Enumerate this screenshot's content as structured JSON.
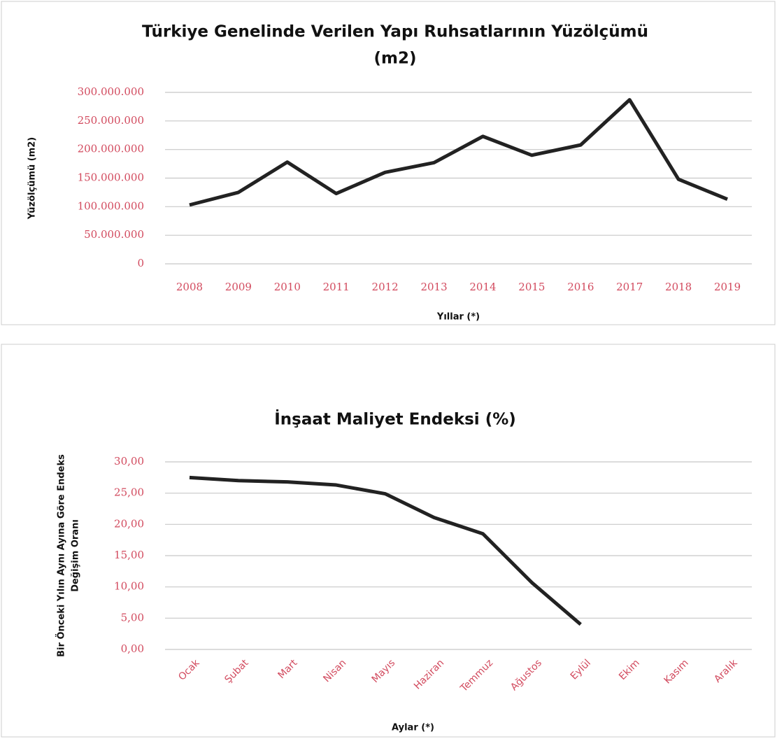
{
  "chart_data": [
    {
      "type": "line",
      "title": [
        "Türkiye Genelinde Verilen Yapı Ruhsatlarının Yüzölçümü",
        "(m2)"
      ],
      "y_label": [
        "Yüzölçümü (m2)"
      ],
      "x_label": "Yıllar (*)",
      "categories": [
        "2008",
        "2009",
        "2010",
        "2011",
        "2012",
        "2013",
        "2014",
        "2015",
        "2016",
        "2017",
        "2018",
        "2019"
      ],
      "series": [
        {
          "color": "#222222",
          "values": [
            103000000,
            125000000,
            178000000,
            123000000,
            160000000,
            177000000,
            223000000,
            190000000,
            208000000,
            287000000,
            148000000,
            113000000
          ]
        }
      ],
      "ylim": [
        0,
        300000000
      ],
      "yticks": [
        0,
        {
          "value": 50000000,
          "label": "50.000.000"
        },
        {
          "value": 100000000,
          "label": "100.000.000"
        },
        {
          "value": 150000000,
          "label": "150.000.000"
        },
        {
          "value": 200000000,
          "label": "200.000.000"
        },
        {
          "value": 250000000,
          "label": "250.000.000"
        },
        {
          "value": 300000000,
          "label": "300.000.000"
        }
      ],
      "grid": true
    },
    {
      "type": "line",
      "title": [
        "İnşaat Maliyet Endeksi (%)"
      ],
      "y_label": [
        "Bir Önceki Yılın Aynı Ayına Göre Endeks",
        "Değişim Oranı"
      ],
      "x_label": "Aylar (*)",
      "categories": [
        "Ocak",
        "Şubat",
        "Mart",
        "Nisan",
        "Mayıs",
        "Haziran",
        "Temmuz",
        "Ağustos",
        "Eylül",
        "Ekim",
        "Kasım",
        "Aralık"
      ],
      "series": [
        {
          "color": "#222222",
          "values": [
            27.5,
            27.0,
            26.8,
            26.3,
            24.9,
            21.1,
            18.5,
            10.7,
            4.0,
            null,
            null,
            null
          ]
        }
      ],
      "ylim": [
        0,
        30
      ],
      "yticks": [
        {
          "value": 0,
          "label": "0,00"
        },
        {
          "value": 5,
          "label": "5,00"
        },
        {
          "value": 10,
          "label": "10,00"
        },
        {
          "value": 15,
          "label": "15,00"
        },
        {
          "value": 20,
          "label": "20,00"
        },
        {
          "value": 25,
          "label": "25,00"
        },
        {
          "value": 30,
          "label": "30,00"
        }
      ],
      "grid": true
    }
  ]
}
